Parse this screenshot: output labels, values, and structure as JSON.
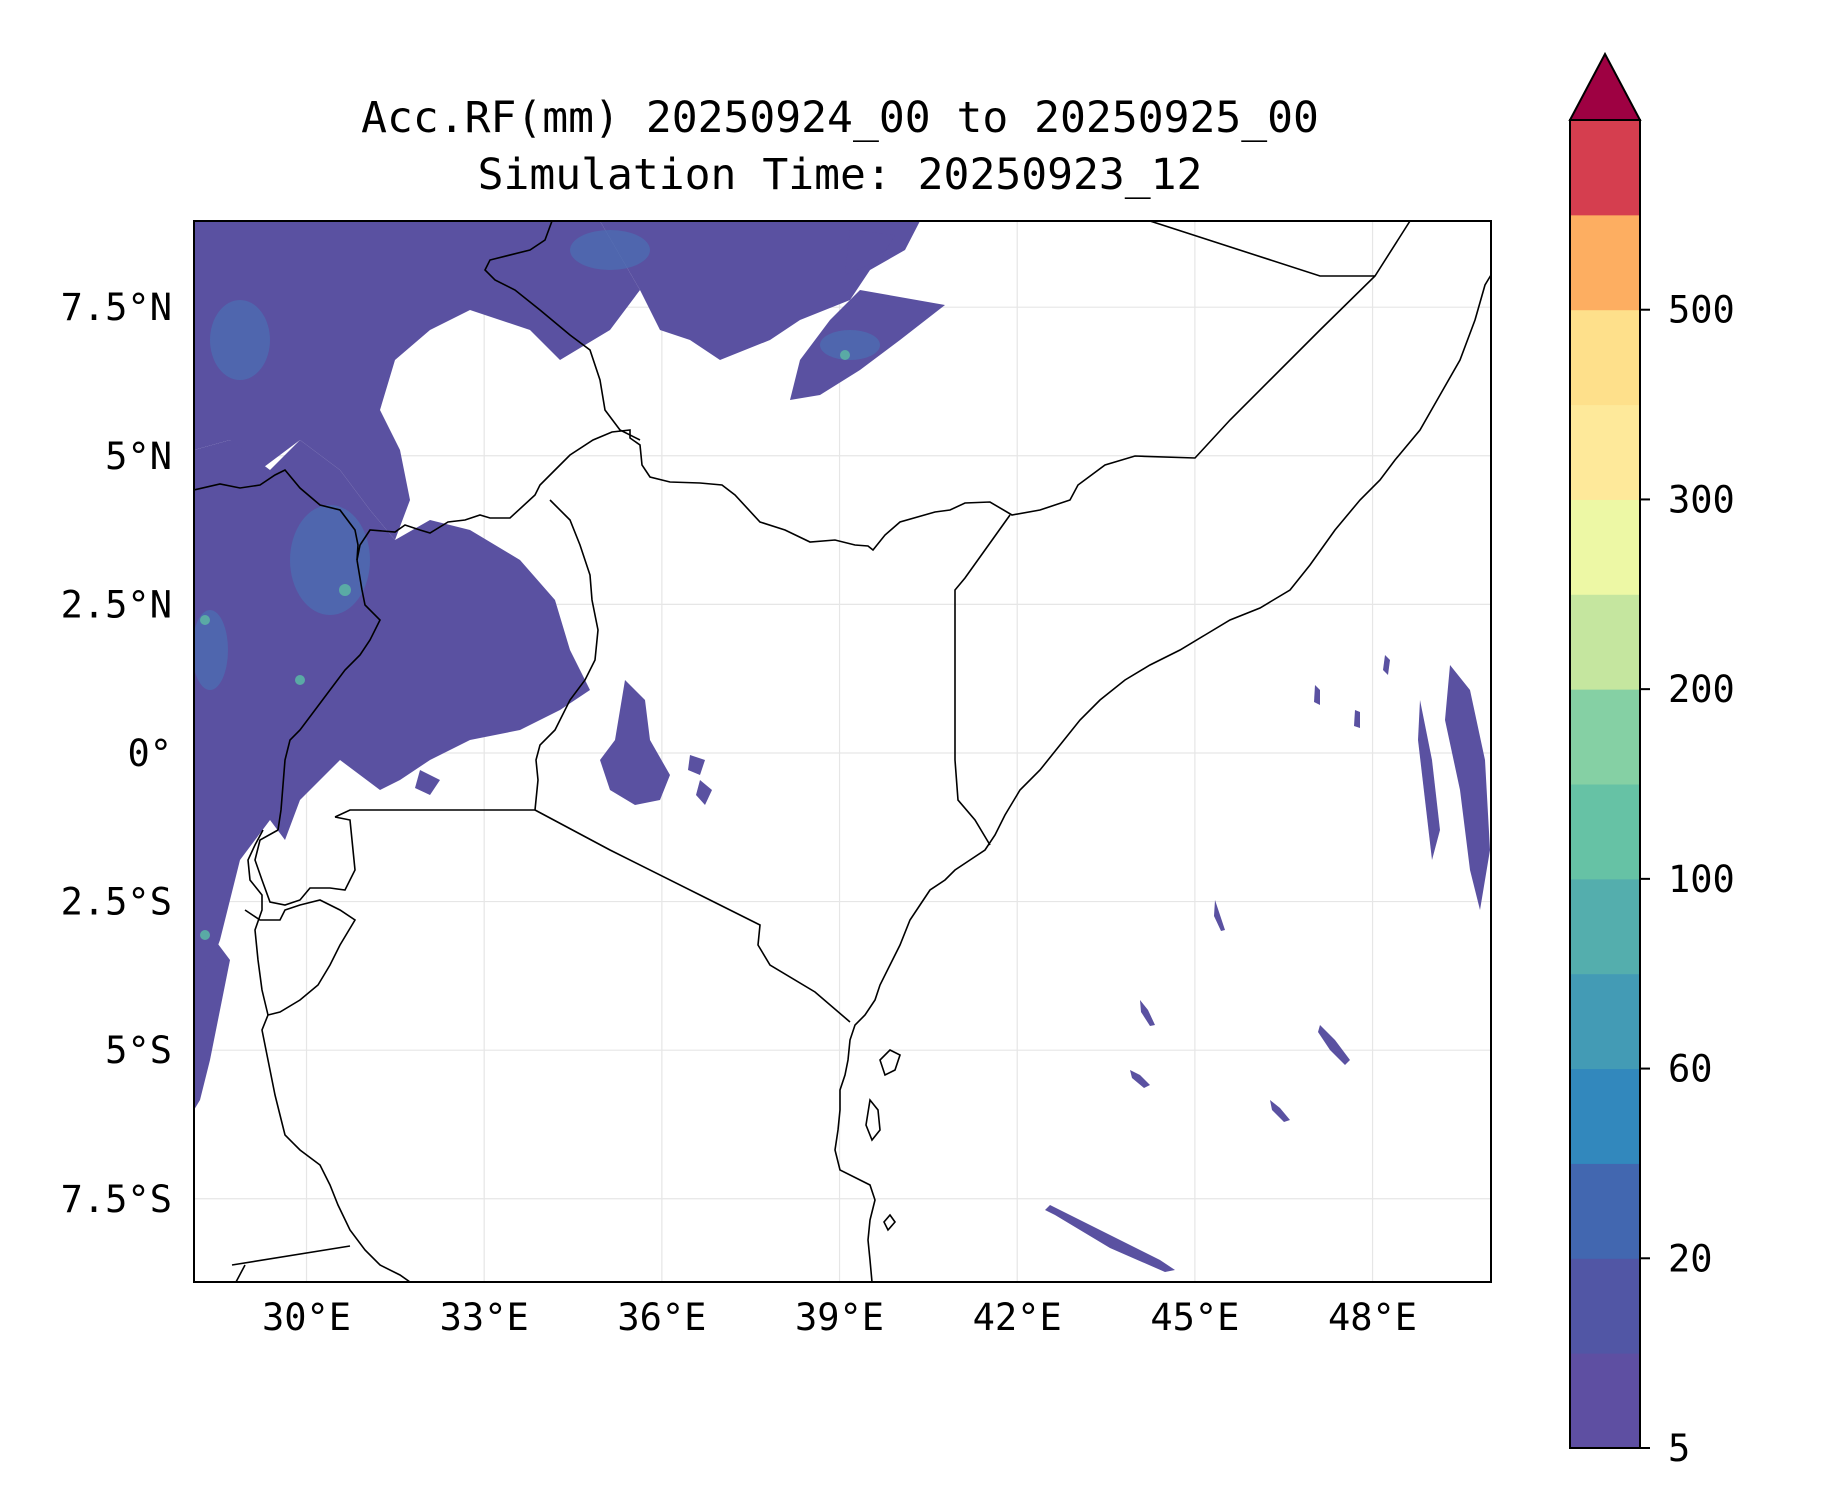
{
  "title": {
    "line1": "Acc.RF(mm) 20250924_00 to 20250925_00",
    "line2": "Simulation Time: 20250923_12"
  },
  "map": {
    "lon_range": [
      28.1,
      50.0
    ],
    "lat_range": [
      -8.9,
      8.95
    ],
    "x_ticks": [
      {
        "value": 30,
        "label": "30°E"
      },
      {
        "value": 33,
        "label": "33°E"
      },
      {
        "value": 36,
        "label": "36°E"
      },
      {
        "value": 39,
        "label": "39°E"
      },
      {
        "value": 42,
        "label": "42°E"
      },
      {
        "value": 45,
        "label": "45°E"
      },
      {
        "value": 48,
        "label": "48°E"
      }
    ],
    "y_ticks": [
      {
        "value": 7.5,
        "label": "7.5°N"
      },
      {
        "value": 5,
        "label": "5°N"
      },
      {
        "value": 2.5,
        "label": "2.5°N"
      },
      {
        "value": 0,
        "label": "0°"
      },
      {
        "value": -2.5,
        "label": "2.5°S"
      },
      {
        "value": -5,
        "label": "5°S"
      },
      {
        "value": -7.5,
        "label": "7.5°S"
      }
    ],
    "gridlines": true,
    "rain_color": "#5a51a1",
    "rain_light_color": "#4a6fb3",
    "rain_peak_color": "#5aaaa5"
  },
  "colorbar": {
    "bands": [
      "#5e4fa2",
      "#5156a5",
      "#4267b0",
      "#3288bd",
      "#439bb5",
      "#54aead",
      "#66c2a5",
      "#85d0a4",
      "#c5e69f",
      "#edf8a5",
      "#fee99a",
      "#fee08b",
      "#fdae61",
      "#d53e4f"
    ],
    "extend_color": "#9e0142",
    "labels": [
      {
        "band": 0,
        "text": "5"
      },
      {
        "band": 2,
        "text": "20"
      },
      {
        "band": 4,
        "text": "60"
      },
      {
        "band": 6,
        "text": "100"
      },
      {
        "band": 8,
        "text": "200"
      },
      {
        "band": 10,
        "text": "300"
      },
      {
        "band": 12,
        "text": "500"
      }
    ]
  }
}
